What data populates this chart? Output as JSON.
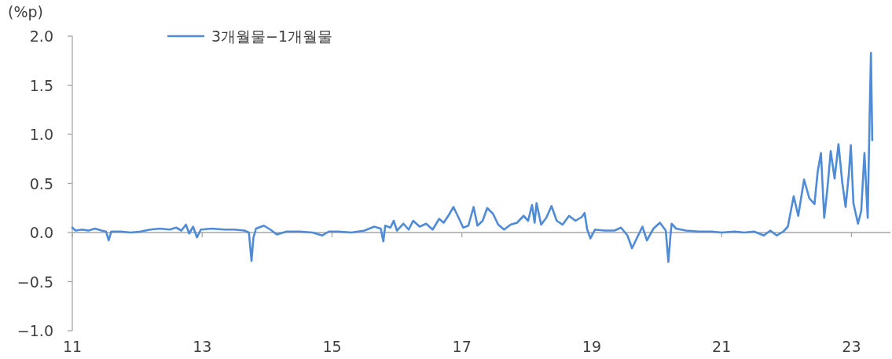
{
  "chart_data": {
    "type": "line",
    "ylabel": "(%p)",
    "legend": "top left",
    "xlim": [
      11,
      23.6
    ],
    "ylim": [
      -1,
      2
    ],
    "xticks": [
      11,
      13,
      15,
      17,
      19,
      21,
      23
    ],
    "yticks": [
      {
        "value": -1,
        "label": "−1.0"
      },
      {
        "value": -0.5,
        "label": "−0.5"
      },
      {
        "value": 0,
        "label": "0.0"
      },
      {
        "value": 0.5,
        "label": "0.5"
      },
      {
        "value": 1,
        "label": "1.0"
      },
      {
        "value": 1.5,
        "label": "1.5"
      },
      {
        "value": 2,
        "label": "2.0"
      }
    ],
    "x": [
      11.0,
      11.05,
      11.15,
      11.25,
      11.35,
      11.45,
      11.52,
      11.56,
      11.6,
      11.75,
      11.9,
      12.05,
      12.2,
      12.35,
      12.5,
      12.6,
      12.68,
      12.75,
      12.8,
      12.86,
      12.92,
      12.98,
      13.15,
      13.35,
      13.5,
      13.65,
      13.72,
      13.76,
      13.79,
      13.83,
      13.95,
      14.05,
      14.15,
      14.3,
      14.5,
      14.7,
      14.85,
      14.95,
      15.1,
      15.3,
      15.5,
      15.65,
      15.75,
      15.79,
      15.82,
      15.9,
      15.95,
      16.0,
      16.1,
      16.18,
      16.25,
      16.35,
      16.45,
      16.55,
      16.65,
      16.72,
      16.8,
      16.87,
      16.95,
      17.02,
      17.1,
      17.18,
      17.24,
      17.32,
      17.39,
      17.48,
      17.56,
      17.65,
      17.75,
      17.85,
      17.95,
      18.02,
      18.08,
      18.12,
      18.15,
      18.22,
      18.3,
      18.38,
      18.46,
      18.55,
      18.65,
      18.75,
      18.85,
      18.89,
      18.93,
      18.98,
      19.05,
      19.2,
      19.35,
      19.45,
      19.55,
      19.62,
      19.7,
      19.78,
      19.85,
      19.95,
      20.05,
      20.14,
      20.18,
      20.21,
      20.23,
      20.3,
      20.45,
      20.65,
      20.85,
      21.0,
      21.2,
      21.35,
      21.5,
      21.65,
      21.75,
      21.85,
      21.95,
      22.02,
      22.11,
      22.18,
      22.27,
      22.35,
      22.43,
      22.48,
      22.53,
      22.58,
      22.63,
      22.68,
      22.74,
      22.8,
      22.86,
      22.91,
      22.96,
      22.99,
      23.03,
      23.1,
      23.15,
      23.2,
      23.25,
      23.28,
      23.3,
      23.32
    ],
    "series": [
      {
        "name": "3개월물−1개월물",
        "color": "#4f8bd6",
        "values": [
          0.05,
          0.02,
          0.03,
          0.02,
          0.04,
          0.02,
          0.01,
          -0.08,
          0.01,
          0.01,
          0.0,
          0.01,
          0.03,
          0.04,
          0.03,
          0.05,
          0.02,
          0.08,
          -0.01,
          0.06,
          -0.05,
          0.03,
          0.04,
          0.03,
          0.03,
          0.02,
          0.0,
          -0.29,
          -0.05,
          0.04,
          0.07,
          0.03,
          -0.02,
          0.01,
          0.01,
          0.0,
          -0.03,
          0.01,
          0.01,
          0.0,
          0.02,
          0.06,
          0.04,
          -0.09,
          0.07,
          0.05,
          0.12,
          0.02,
          0.09,
          0.03,
          0.12,
          0.06,
          0.09,
          0.03,
          0.14,
          0.1,
          0.18,
          0.26,
          0.15,
          0.05,
          0.07,
          0.26,
          0.07,
          0.12,
          0.25,
          0.19,
          0.08,
          0.03,
          0.08,
          0.1,
          0.17,
          0.12,
          0.28,
          0.1,
          0.3,
          0.08,
          0.15,
          0.27,
          0.12,
          0.08,
          0.17,
          0.12,
          0.16,
          0.2,
          0.03,
          -0.06,
          0.03,
          0.02,
          0.02,
          0.05,
          -0.03,
          -0.16,
          -0.05,
          0.06,
          -0.08,
          0.04,
          0.1,
          0.02,
          -0.3,
          -0.05,
          0.09,
          0.04,
          0.02,
          0.01,
          0.01,
          0.0,
          0.01,
          0.0,
          0.01,
          -0.03,
          0.02,
          -0.03,
          0.01,
          0.06,
          0.37,
          0.17,
          0.54,
          0.35,
          0.29,
          0.62,
          0.81,
          0.15,
          0.45,
          0.83,
          0.55,
          0.9,
          0.5,
          0.26,
          0.6,
          0.89,
          0.3,
          0.09,
          0.22,
          0.81,
          0.15,
          1.2,
          1.83,
          0.94
        ]
      }
    ]
  }
}
